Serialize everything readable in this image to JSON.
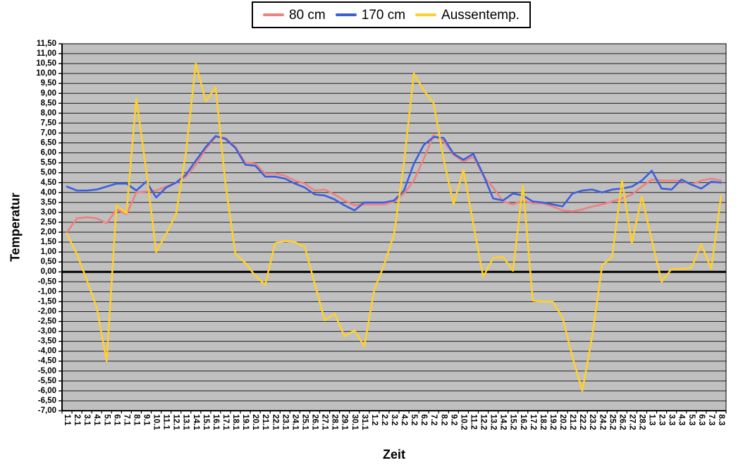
{
  "window": {
    "background": "#FFFFFF"
  },
  "legend": {
    "background": "#FFFFFF",
    "border_color": "#000000"
  },
  "chart_data": {
    "type": "line",
    "title": "",
    "xlabel": "Zeit",
    "ylabel": "Temperatur",
    "ylim": [
      -7.0,
      11.5
    ],
    "ytick_step": 0.5,
    "grid": "horizontal",
    "legend_position": "top-center",
    "plot_bg": "#C0C0C0",
    "grid_color": "#1F1F1F",
    "zero_line_color": "#000000",
    "axis_color": "#000000",
    "y_tick_labels": [
      "11,50",
      "11,00",
      "10,50",
      "10,00",
      "9,50",
      "9,00",
      "8,50",
      "8,00",
      "7,50",
      "7,00",
      "6,50",
      "6,00",
      "5,50",
      "5,00",
      "4,50",
      "4,00",
      "3,50",
      "3,00",
      "2,50",
      "2,00",
      "1,50",
      "1,00",
      "0,50",
      "0,00",
      "-0,50",
      "-1,00",
      "-1,50",
      "-2,00",
      "-2,50",
      "-3,00",
      "-3,50",
      "-4,00",
      "-4,50",
      "-5,00",
      "-5,50",
      "-6,00",
      "-6,50",
      "-7,00"
    ],
    "categories": [
      "1.1",
      "2.1",
      "3.1",
      "4.1",
      "5.1",
      "6.1",
      "7.1",
      "8.1",
      "9.1",
      "10.1",
      "11.1",
      "12.1",
      "13.1",
      "14.1",
      "15.1",
      "16.1",
      "17.1",
      "18.1",
      "19.1",
      "20.1",
      "21.1",
      "22.1",
      "23.1",
      "24.1",
      "25.1",
      "26.1",
      "27.1",
      "28.1",
      "29.1",
      "30.1",
      "31.1",
      "1.2",
      "2.2",
      "3.2",
      "4.2",
      "5.2",
      "6.2",
      "7.2",
      "8.2",
      "9.2",
      "10.2",
      "11.2",
      "12.2",
      "13.2",
      "14.2",
      "15.2",
      "16.2",
      "17.2",
      "18.2",
      "19.2",
      "20.2",
      "21.2",
      "22.2",
      "23.2",
      "24.2",
      "25.2",
      "26.2",
      "27.2",
      "28.2",
      "1.3",
      "2.3",
      "3.3",
      "4.3",
      "5.3",
      "6.3",
      "7.3",
      "8.3"
    ],
    "series": [
      {
        "name": "80 cm",
        "color": "#F08080",
        "values": [
          2.0,
          2.7,
          2.75,
          2.7,
          2.45,
          3.15,
          2.9,
          4.0,
          4.05,
          4.1,
          4.3,
          4.5,
          4.8,
          5.4,
          6.2,
          6.8,
          6.75,
          6.3,
          5.5,
          5.45,
          4.95,
          4.95,
          4.85,
          4.6,
          4.45,
          4.1,
          4.15,
          3.9,
          3.6,
          3.35,
          3.4,
          3.4,
          3.4,
          3.55,
          3.95,
          4.6,
          5.7,
          6.9,
          6.6,
          5.9,
          5.55,
          5.8,
          4.85,
          4.25,
          3.55,
          3.4,
          3.6,
          3.45,
          3.45,
          3.3,
          3.1,
          3.05,
          3.15,
          3.3,
          3.4,
          3.55,
          3.7,
          3.9,
          4.3,
          4.65,
          4.6,
          4.6,
          4.6,
          4.4,
          4.6,
          4.7,
          4.6
        ]
      },
      {
        "name": "170 cm",
        "color": "#3A5FDE",
        "values": [
          4.3,
          4.1,
          4.1,
          4.15,
          4.3,
          4.45,
          4.45,
          4.1,
          4.55,
          3.75,
          4.25,
          4.5,
          4.9,
          5.6,
          6.3,
          6.85,
          6.7,
          6.25,
          5.4,
          5.35,
          4.8,
          4.8,
          4.7,
          4.45,
          4.25,
          3.9,
          3.85,
          3.65,
          3.35,
          3.1,
          3.5,
          3.5,
          3.5,
          3.6,
          4.1,
          5.45,
          6.4,
          6.8,
          6.75,
          5.95,
          5.65,
          5.95,
          4.9,
          3.7,
          3.6,
          3.95,
          3.85,
          3.55,
          3.5,
          3.4,
          3.3,
          3.95,
          4.1,
          4.15,
          4.0,
          4.15,
          4.2,
          4.3,
          4.6,
          5.1,
          4.2,
          4.15,
          4.65,
          4.4,
          4.2,
          4.55,
          4.5
        ]
      },
      {
        "name": "Aussentemp.",
        "color": "#FFD02C",
        "values": [
          1.9,
          0.9,
          -0.4,
          -1.8,
          -4.5,
          3.35,
          2.95,
          8.75,
          5.1,
          1.0,
          1.9,
          2.9,
          6.0,
          10.5,
          8.6,
          9.3,
          4.4,
          0.9,
          0.45,
          -0.2,
          -0.65,
          1.45,
          1.55,
          1.5,
          1.25,
          -0.6,
          -2.45,
          -2.1,
          -3.25,
          -2.95,
          -3.75,
          -0.9,
          0.35,
          1.9,
          5.5,
          10.0,
          9.15,
          8.5,
          5.7,
          3.4,
          5.15,
          2.4,
          -0.25,
          0.7,
          0.75,
          0.05,
          4.35,
          -1.45,
          -1.5,
          -1.5,
          -2.3,
          -4.3,
          -6.0,
          -3.2,
          0.35,
          0.75,
          4.6,
          1.45,
          3.8,
          1.6,
          -0.5,
          0.15,
          0.15,
          0.2,
          1.4,
          0.15,
          3.85
        ]
      }
    ]
  }
}
